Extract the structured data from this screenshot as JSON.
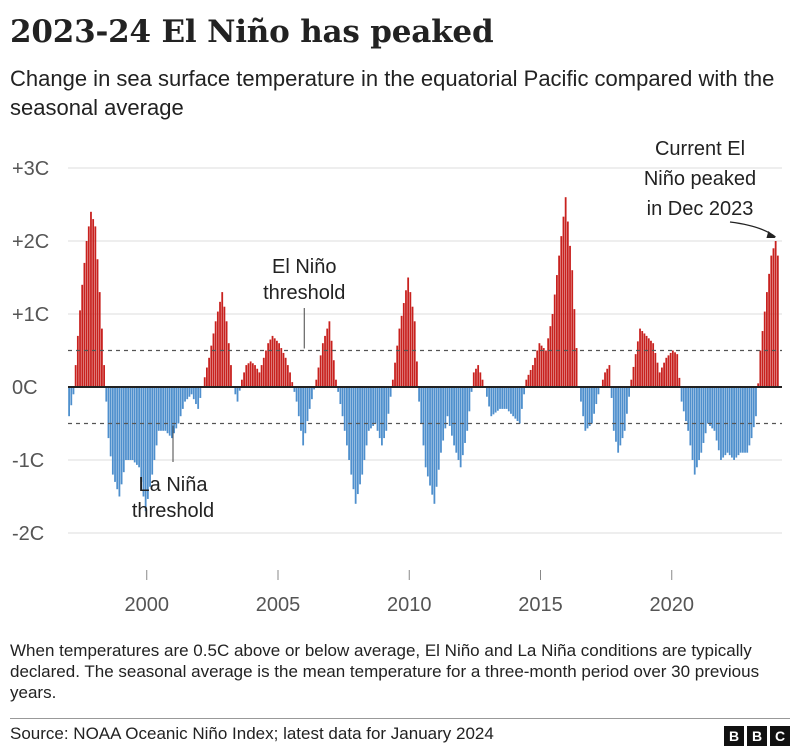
{
  "header": {
    "title": "2023-24 El Niño has peaked",
    "subtitle": "Change in sea surface temperature in the equatorial Pacific compared with the seasonal average"
  },
  "footer": {
    "note": "When temperatures are 0.5C above or below average, El Niño and La Niña conditions are typically declared. The seasonal average is the mean temperature for a three-month period over 30 previous years.",
    "source": "Source: NOAA Oceanic Niño Index; latest data for January 2024",
    "logo_letters": [
      "B",
      "B",
      "C"
    ]
  },
  "colors": {
    "positive": "#c8211e",
    "negative": "#4e8fcd",
    "zero_line": "#222222",
    "threshold": "#555555",
    "grid": "#dddddd"
  },
  "chart_data": {
    "type": "bar",
    "y_unit": "C",
    "ylim": [
      -2.5,
      3.0
    ],
    "y_ticks": [
      3,
      2,
      1,
      0,
      -1,
      -2
    ],
    "y_tick_labels": [
      "+3C",
      "+2C",
      "+1C",
      "0C",
      "-1C",
      "-2C"
    ],
    "x_ticks": [
      2000,
      2005,
      2010,
      2015,
      2020
    ],
    "x_tick_labels": [
      "2000",
      "2005",
      "2010",
      "2015",
      "2020"
    ],
    "thresholds": {
      "el_nino": 0.5,
      "la_nina": -0.5
    },
    "annotations": {
      "el_nino": [
        "El Niño",
        "threshold"
      ],
      "la_nina": [
        "La Niña",
        "threshold"
      ],
      "peak": [
        "Current El",
        "Niño peaked",
        "in Dec 2023"
      ]
    },
    "anchors_note": "Monthly values estimated from the chart",
    "series": [
      {
        "values_by_anchor": [
          [
            "1997-01",
            -0.4
          ],
          [
            "1997-03",
            -0.1
          ],
          [
            "1997-05",
            0.7
          ],
          [
            "1997-07",
            1.4
          ],
          [
            "1997-09",
            2.0
          ],
          [
            "1997-11",
            2.4
          ],
          [
            "1998-01",
            2.2
          ],
          [
            "1998-03",
            1.3
          ],
          [
            "1998-05",
            0.3
          ],
          [
            "1998-07",
            -0.7
          ],
          [
            "1998-09",
            -1.2
          ],
          [
            "1998-12",
            -1.5
          ],
          [
            "1999-03",
            -1.0
          ],
          [
            "1999-06",
            -1.0
          ],
          [
            "1999-09",
            -1.1
          ],
          [
            "1999-12",
            -1.7
          ],
          [
            "2000-03",
            -1.2
          ],
          [
            "2000-06",
            -0.6
          ],
          [
            "2000-09",
            -0.6
          ],
          [
            "2000-12",
            -0.7
          ],
          [
            "2001-03",
            -0.5
          ],
          [
            "2001-06",
            -0.2
          ],
          [
            "2001-09",
            -0.1
          ],
          [
            "2001-12",
            -0.3
          ],
          [
            "2002-02",
            0.0
          ],
          [
            "2002-05",
            0.4
          ],
          [
            "2002-08",
            0.9
          ],
          [
            "2002-11",
            1.3
          ],
          [
            "2003-01",
            0.9
          ],
          [
            "2003-04",
            0.0
          ],
          [
            "2003-06",
            -0.2
          ],
          [
            "2003-08",
            0.1
          ],
          [
            "2003-10",
            0.3
          ],
          [
            "2003-12",
            0.35
          ],
          [
            "2004-02",
            0.3
          ],
          [
            "2004-04",
            0.2
          ],
          [
            "2004-06",
            0.4
          ],
          [
            "2004-08",
            0.6
          ],
          [
            "2004-10",
            0.7
          ],
          [
            "2005-01",
            0.6
          ],
          [
            "2005-04",
            0.4
          ],
          [
            "2005-06",
            0.2
          ],
          [
            "2005-09",
            -0.2
          ],
          [
            "2005-12",
            -0.8
          ],
          [
            "2006-03",
            -0.3
          ],
          [
            "2006-06",
            0.1
          ],
          [
            "2006-09",
            0.6
          ],
          [
            "2006-12",
            0.9
          ],
          [
            "2007-03",
            0.1
          ],
          [
            "2007-06",
            -0.4
          ],
          [
            "2007-09",
            -1.0
          ],
          [
            "2007-12",
            -1.6
          ],
          [
            "2008-03",
            -1.2
          ],
          [
            "2008-06",
            -0.6
          ],
          [
            "2008-09",
            -0.5
          ],
          [
            "2008-12",
            -0.8
          ],
          [
            "2009-02",
            -0.6
          ],
          [
            "2009-05",
            0.1
          ],
          [
            "2009-08",
            0.8
          ],
          [
            "2009-12",
            1.5
          ],
          [
            "2010-03",
            0.9
          ],
          [
            "2010-05",
            -0.2
          ],
          [
            "2010-08",
            -1.1
          ],
          [
            "2010-12",
            -1.6
          ],
          [
            "2011-03",
            -0.9
          ],
          [
            "2011-06",
            -0.4
          ],
          [
            "2011-09",
            -0.8
          ],
          [
            "2011-12",
            -1.1
          ],
          [
            "2012-03",
            -0.6
          ],
          [
            "2012-06",
            0.2
          ],
          [
            "2012-08",
            0.3
          ],
          [
            "2012-11",
            0.0
          ],
          [
            "2013-02",
            -0.4
          ],
          [
            "2013-06",
            -0.3
          ],
          [
            "2013-09",
            -0.3
          ],
          [
            "2013-12",
            -0.4
          ],
          [
            "2014-03",
            -0.5
          ],
          [
            "2014-06",
            0.1
          ],
          [
            "2014-09",
            0.3
          ],
          [
            "2014-12",
            0.6
          ],
          [
            "2015-03",
            0.5
          ],
          [
            "2015-06",
            1.0
          ],
          [
            "2015-09",
            1.8
          ],
          [
            "2015-12",
            2.6
          ],
          [
            "2016-03",
            1.6
          ],
          [
            "2016-06",
            0.0
          ],
          [
            "2016-09",
            -0.6
          ],
          [
            "2016-12",
            -0.5
          ],
          [
            "2017-03",
            -0.1
          ],
          [
            "2017-06",
            0.2
          ],
          [
            "2017-08",
            0.3
          ],
          [
            "2017-10",
            -0.6
          ],
          [
            "2017-12",
            -0.9
          ],
          [
            "2018-03",
            -0.6
          ],
          [
            "2018-06",
            0.1
          ],
          [
            "2018-10",
            0.8
          ],
          [
            "2019-01",
            0.7
          ],
          [
            "2019-04",
            0.6
          ],
          [
            "2019-07",
            0.2
          ],
          [
            "2019-10",
            0.4
          ],
          [
            "2020-01",
            0.5
          ],
          [
            "2020-03",
            0.45
          ],
          [
            "2020-05",
            -0.2
          ],
          [
            "2020-08",
            -0.6
          ],
          [
            "2020-11",
            -1.2
          ],
          [
            "2021-02",
            -0.9
          ],
          [
            "2021-05",
            -0.5
          ],
          [
            "2021-08",
            -0.6
          ],
          [
            "2021-11",
            -1.0
          ],
          [
            "2022-02",
            -0.9
          ],
          [
            "2022-05",
            -1.0
          ],
          [
            "2022-08",
            -0.9
          ],
          [
            "2022-11",
            -0.9
          ],
          [
            "2023-01",
            -0.7
          ],
          [
            "2023-03",
            -0.4
          ],
          [
            "2023-05",
            0.5
          ],
          [
            "2023-08",
            1.3
          ],
          [
            "2023-10",
            1.8
          ],
          [
            "2023-12",
            2.0
          ],
          [
            "2024-01",
            1.8
          ]
        ]
      }
    ]
  }
}
